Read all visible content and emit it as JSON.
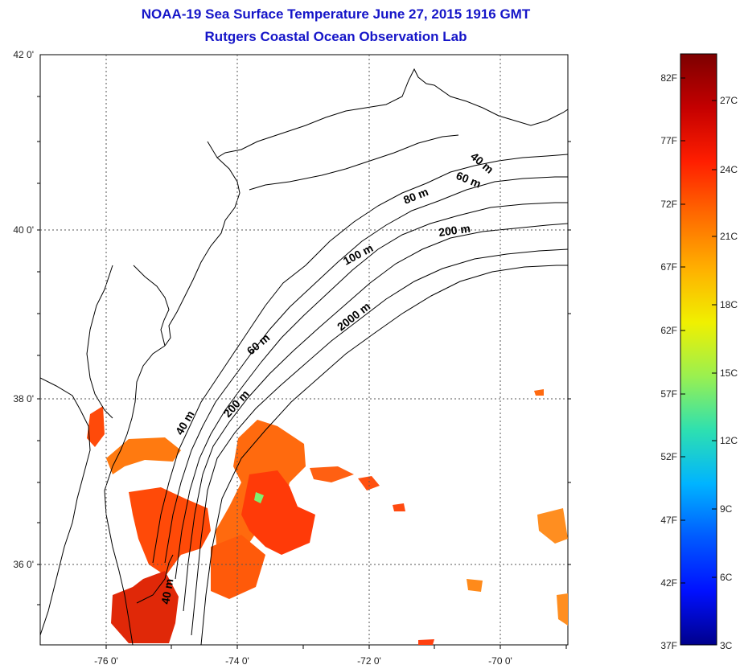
{
  "title": {
    "line1": "NOAA-19 Sea Surface Temperature June 27, 2015 1916 GMT",
    "line2": "Rutgers Coastal Ocean Observation Lab"
  },
  "axes": {
    "lat_labels": [
      "42 0'",
      "40 0'",
      "38 0'",
      "36 0'"
    ],
    "lon_labels": [
      "-76 0'",
      "-74 0'",
      "-72 0'",
      "-70 0'"
    ]
  },
  "isobath_labels": [
    "40 m",
    "60 m",
    "80 m",
    "100 m",
    "200 m",
    "2000 m",
    "60 m",
    "40 m",
    "200 m",
    "40 m"
  ],
  "colorbar": {
    "fahrenheit_labels": [
      "82F",
      "77F",
      "72F",
      "67F",
      "62F",
      "57F",
      "52F",
      "47F",
      "42F",
      "37F"
    ],
    "celsius_labels": [
      "27C",
      "24C",
      "21C",
      "18C",
      "15C",
      "12C",
      "9C",
      "6C",
      "3C"
    ],
    "colors": [
      "#7d0000",
      "#c40000",
      "#ff1e00",
      "#ff6a00",
      "#ffb000",
      "#f0f000",
      "#9af050",
      "#2ee0b0",
      "#00b4ff",
      "#005aff",
      "#0010ff",
      "#00008c"
    ]
  },
  "colors": {
    "title": "#1515c8",
    "coast": "#000000",
    "grid": "#555555"
  }
}
